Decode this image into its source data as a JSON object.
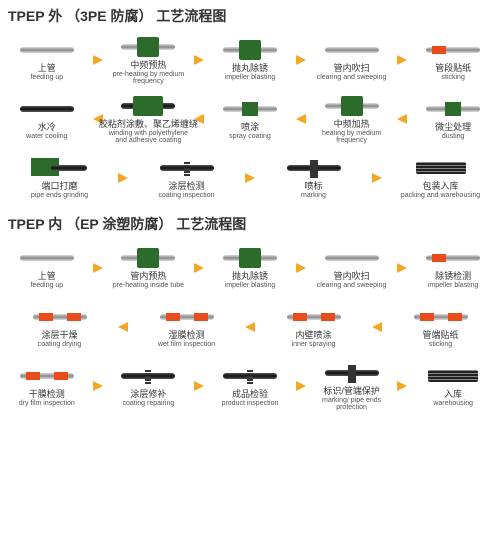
{
  "arrow_color": "#f5a623",
  "title_color": "#333333",
  "green": "#2d6b2d",
  "orange": "#e84c1a",
  "section1": {
    "title": "TPEP 外  （3PE 防腐） 工艺流程图",
    "rows": [
      [
        {
          "cn": "上管",
          "en": "feeding up",
          "icon": "pipe"
        },
        {
          "cn": "中频预热",
          "en": "pre-heating by medium frequency",
          "icon": "pipe-box"
        },
        {
          "cn": "抛丸除锈",
          "en": "impeller blasting",
          "icon": "pipe-box"
        },
        {
          "cn": "管内吹扫",
          "en": "clearing and sweeping",
          "icon": "pipe"
        },
        {
          "cn": "管段贴纸",
          "en": "sticking",
          "icon": "pipe-mark"
        }
      ],
      [
        {
          "cn": "水冷",
          "en": "water cooling",
          "icon": "pipe-dark"
        },
        {
          "cn": "胶粘剂涂敷、聚乙烯缠绕",
          "en": "winding with polyethylene and adhesive coating",
          "icon": "pipe-box-wide"
        },
        {
          "cn": "喷涂",
          "en": "spray coating",
          "icon": "pipe-g"
        },
        {
          "cn": "中频加热",
          "en": "heating by medium frequency",
          "icon": "pipe-box"
        },
        {
          "cn": "微尘处理",
          "en": "dusting",
          "icon": "pipe-g"
        }
      ],
      [
        {
          "cn": "端口打磨",
          "en": "pipe ends grinding",
          "icon": "cart"
        },
        {
          "cn": "涂层检测",
          "en": "coating inspection",
          "icon": "pipe-spring"
        },
        {
          "cn": "喷标",
          "en": "marking",
          "icon": "pipe-stand"
        },
        {
          "cn": "包装入库",
          "en": "packing and warehousing",
          "icon": "bundle"
        }
      ]
    ],
    "dirs": [
      "right",
      "left",
      "right"
    ]
  },
  "section2": {
    "title": "TPEP 内  （EP 涂塑防腐） 工艺流程图",
    "rows": [
      [
        {
          "cn": "上管",
          "en": "feeding up",
          "icon": "pipe"
        },
        {
          "cn": "管内预热",
          "en": "pre-heating inside tube",
          "icon": "pipe-box"
        },
        {
          "cn": "抛丸除锈",
          "en": "impeller blasting",
          "icon": "pipe-box"
        },
        {
          "cn": "管内吹扫",
          "en": "clearing and sweeping",
          "icon": "pipe"
        },
        {
          "cn": "除锈检测",
          "en": "impeller blasting",
          "icon": "pipe-mark"
        }
      ],
      [
        {
          "cn": "涂层干燥",
          "en": "coating drying",
          "icon": "pipe-om"
        },
        {
          "cn": "湿膜检测",
          "en": "wet film inspection",
          "icon": "pipe-om"
        },
        {
          "cn": "内壁喷涂",
          "en": "inner spraying",
          "icon": "pipe-om"
        },
        {
          "cn": "管端贴纸",
          "en": "sticking",
          "icon": "pipe-om"
        }
      ],
      [
        {
          "cn": "干膜检测",
          "en": "dry film inspection",
          "icon": "pipe-om"
        },
        {
          "cn": "涂层修补",
          "en": "coating repairing",
          "icon": "pipe-spring"
        },
        {
          "cn": "成品检验",
          "en": "product inspection",
          "icon": "pipe-spring"
        },
        {
          "cn": "标识/管端保护",
          "en": "marking/ pipe ends protection",
          "icon": "pipe-stand"
        },
        {
          "cn": "入库",
          "en": "warehousing",
          "icon": "bundle"
        }
      ]
    ],
    "dirs": [
      "right",
      "left",
      "right"
    ]
  }
}
